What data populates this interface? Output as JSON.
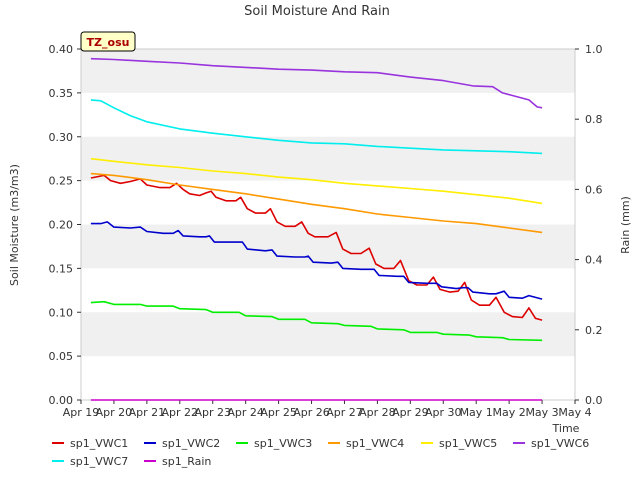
{
  "chart_data": {
    "type": "line",
    "title": "Soil Moisture And Rain",
    "badge": "TZ_osu",
    "xlabel": "Time",
    "ylabel": "Soil Moisture (m3/m3)",
    "y2label": "Rain (mm)",
    "ylim": [
      0,
      0.4
    ],
    "y2lim": [
      0,
      1.0
    ],
    "xlim": [
      0,
      15
    ],
    "grid": "horizontal bands",
    "legend_position": "bottom",
    "x_ticks": [
      {
        "x": 0,
        "label": "Apr 19"
      },
      {
        "x": 1,
        "label": "Apr 20"
      },
      {
        "x": 2,
        "label": "Apr 21"
      },
      {
        "x": 3,
        "label": "Apr 22"
      },
      {
        "x": 4,
        "label": "Apr 23"
      },
      {
        "x": 5,
        "label": "Apr 24"
      },
      {
        "x": 6,
        "label": "Apr 25"
      },
      {
        "x": 7,
        "label": "Apr 26"
      },
      {
        "x": 8,
        "label": "Apr 27"
      },
      {
        "x": 9,
        "label": "Apr 28"
      },
      {
        "x": 10,
        "label": "Apr 29"
      },
      {
        "x": 11,
        "label": "Apr 30"
      },
      {
        "x": 12,
        "label": "May 1"
      },
      {
        "x": 13,
        "label": "May 2"
      },
      {
        "x": 14,
        "label": "May 3"
      },
      {
        "x": 15,
        "label": "May 4"
      }
    ],
    "y_ticks": [
      {
        "v": 0.0,
        "label": "0.00"
      },
      {
        "v": 0.05,
        "label": "0.05"
      },
      {
        "v": 0.1,
        "label": "0.10"
      },
      {
        "v": 0.15,
        "label": "0.15"
      },
      {
        "v": 0.2,
        "label": "0.20"
      },
      {
        "v": 0.25,
        "label": "0.25"
      },
      {
        "v": 0.3,
        "label": "0.30"
      },
      {
        "v": 0.35,
        "label": "0.35"
      },
      {
        "v": 0.4,
        "label": "0.40"
      }
    ],
    "y2_ticks": [
      {
        "v": 0.0,
        "label": "0.0"
      },
      {
        "v": 0.2,
        "label": "0.2"
      },
      {
        "v": 0.4,
        "label": "0.4"
      },
      {
        "v": 0.6,
        "label": "0.6"
      },
      {
        "v": 0.8,
        "label": "0.8"
      },
      {
        "v": 1.0,
        "label": "1.0"
      }
    ],
    "series": [
      {
        "name": "sp1_VWC1",
        "color": "#dd0000",
        "axis": "left",
        "points": [
          [
            0.3,
            0.253
          ],
          [
            0.7,
            0.256
          ],
          [
            0.9,
            0.25
          ],
          [
            1.2,
            0.247
          ],
          [
            1.5,
            0.249
          ],
          [
            1.8,
            0.252
          ],
          [
            2.0,
            0.245
          ],
          [
            2.4,
            0.242
          ],
          [
            2.7,
            0.242
          ],
          [
            2.9,
            0.247
          ],
          [
            3.1,
            0.24
          ],
          [
            3.3,
            0.235
          ],
          [
            3.6,
            0.233
          ],
          [
            3.8,
            0.236
          ],
          [
            3.95,
            0.238
          ],
          [
            4.1,
            0.231
          ],
          [
            4.4,
            0.227
          ],
          [
            4.7,
            0.227
          ],
          [
            4.85,
            0.231
          ],
          [
            5.05,
            0.218
          ],
          [
            5.3,
            0.213
          ],
          [
            5.6,
            0.213
          ],
          [
            5.75,
            0.218
          ],
          [
            5.95,
            0.203
          ],
          [
            6.2,
            0.198
          ],
          [
            6.5,
            0.198
          ],
          [
            6.7,
            0.203
          ],
          [
            6.9,
            0.19
          ],
          [
            7.1,
            0.186
          ],
          [
            7.5,
            0.186
          ],
          [
            7.75,
            0.191
          ],
          [
            7.95,
            0.172
          ],
          [
            8.2,
            0.167
          ],
          [
            8.5,
            0.167
          ],
          [
            8.75,
            0.173
          ],
          [
            8.95,
            0.155
          ],
          [
            9.2,
            0.15
          ],
          [
            9.5,
            0.15
          ],
          [
            9.7,
            0.159
          ],
          [
            9.95,
            0.136
          ],
          [
            10.2,
            0.131
          ],
          [
            10.5,
            0.131
          ],
          [
            10.7,
            0.14
          ],
          [
            10.9,
            0.126
          ],
          [
            11.2,
            0.123
          ],
          [
            11.45,
            0.124
          ],
          [
            11.65,
            0.134
          ],
          [
            11.85,
            0.114
          ],
          [
            12.1,
            0.108
          ],
          [
            12.4,
            0.108
          ],
          [
            12.6,
            0.117
          ],
          [
            12.85,
            0.1
          ],
          [
            13.1,
            0.095
          ],
          [
            13.4,
            0.094
          ],
          [
            13.6,
            0.105
          ],
          [
            13.8,
            0.093
          ],
          [
            14.0,
            0.091
          ]
        ]
      },
      {
        "name": "sp1_VWC2",
        "color": "#0000cc",
        "axis": "left",
        "points": [
          [
            0.3,
            0.201
          ],
          [
            0.6,
            0.201
          ],
          [
            0.8,
            0.203
          ],
          [
            1.0,
            0.197
          ],
          [
            1.5,
            0.196
          ],
          [
            1.8,
            0.197
          ],
          [
            2.0,
            0.192
          ],
          [
            2.5,
            0.19
          ],
          [
            2.8,
            0.19
          ],
          [
            2.95,
            0.193
          ],
          [
            3.1,
            0.187
          ],
          [
            3.6,
            0.186
          ],
          [
            3.8,
            0.186
          ],
          [
            3.9,
            0.187
          ],
          [
            4.05,
            0.18
          ],
          [
            4.7,
            0.18
          ],
          [
            4.9,
            0.18
          ],
          [
            5.05,
            0.172
          ],
          [
            5.6,
            0.17
          ],
          [
            5.8,
            0.171
          ],
          [
            5.95,
            0.164
          ],
          [
            6.5,
            0.163
          ],
          [
            6.8,
            0.163
          ],
          [
            6.9,
            0.164
          ],
          [
            7.05,
            0.157
          ],
          [
            7.6,
            0.156
          ],
          [
            7.8,
            0.157
          ],
          [
            7.95,
            0.15
          ],
          [
            8.5,
            0.149
          ],
          [
            8.75,
            0.149
          ],
          [
            8.9,
            0.149
          ],
          [
            9.05,
            0.142
          ],
          [
            9.6,
            0.141
          ],
          [
            9.8,
            0.141
          ],
          [
            9.95,
            0.134
          ],
          [
            10.5,
            0.133
          ],
          [
            10.8,
            0.133
          ],
          [
            10.95,
            0.129
          ],
          [
            11.4,
            0.127
          ],
          [
            11.6,
            0.128
          ],
          [
            11.75,
            0.128
          ],
          [
            11.9,
            0.123
          ],
          [
            12.4,
            0.121
          ],
          [
            12.6,
            0.121
          ],
          [
            12.85,
            0.124
          ],
          [
            13.0,
            0.117
          ],
          [
            13.4,
            0.116
          ],
          [
            13.6,
            0.119
          ],
          [
            14.0,
            0.115
          ]
        ]
      },
      {
        "name": "sp1_VWC3",
        "color": "#00ee00",
        "axis": "left",
        "points": [
          [
            0.3,
            0.111
          ],
          [
            0.7,
            0.112
          ],
          [
            1.0,
            0.109
          ],
          [
            1.8,
            0.109
          ],
          [
            2.0,
            0.107
          ],
          [
            2.8,
            0.107
          ],
          [
            3.0,
            0.104
          ],
          [
            3.8,
            0.103
          ],
          [
            4.0,
            0.1
          ],
          [
            4.8,
            0.1
          ],
          [
            5.0,
            0.096
          ],
          [
            5.8,
            0.095
          ],
          [
            6.0,
            0.092
          ],
          [
            6.8,
            0.092
          ],
          [
            7.0,
            0.088
          ],
          [
            7.8,
            0.087
          ],
          [
            8.0,
            0.085
          ],
          [
            8.8,
            0.084
          ],
          [
            9.0,
            0.081
          ],
          [
            9.8,
            0.08
          ],
          [
            10.0,
            0.077
          ],
          [
            10.8,
            0.077
          ],
          [
            11.0,
            0.075
          ],
          [
            11.8,
            0.074
          ],
          [
            12.0,
            0.072
          ],
          [
            12.8,
            0.071
          ],
          [
            13.0,
            0.069
          ],
          [
            14.0,
            0.068
          ]
        ]
      },
      {
        "name": "sp1_VWC4",
        "color": "#ff9900",
        "axis": "left",
        "points": [
          [
            0.3,
            0.258
          ],
          [
            1.0,
            0.256
          ],
          [
            2.0,
            0.251
          ],
          [
            3.0,
            0.245
          ],
          [
            4.0,
            0.24
          ],
          [
            5.0,
            0.235
          ],
          [
            6.0,
            0.229
          ],
          [
            7.0,
            0.223
          ],
          [
            8.0,
            0.218
          ],
          [
            9.0,
            0.212
          ],
          [
            10.0,
            0.208
          ],
          [
            11.0,
            0.204
          ],
          [
            12.0,
            0.201
          ],
          [
            13.0,
            0.196
          ],
          [
            14.0,
            0.191
          ]
        ]
      },
      {
        "name": "sp1_VWC5",
        "color": "#ffee00",
        "axis": "left",
        "points": [
          [
            0.3,
            0.275
          ],
          [
            1.0,
            0.272
          ],
          [
            2.0,
            0.268
          ],
          [
            3.0,
            0.265
          ],
          [
            4.0,
            0.261
          ],
          [
            5.0,
            0.258
          ],
          [
            6.0,
            0.254
          ],
          [
            7.0,
            0.251
          ],
          [
            8.0,
            0.247
          ],
          [
            9.0,
            0.244
          ],
          [
            10.0,
            0.241
          ],
          [
            11.0,
            0.238
          ],
          [
            12.0,
            0.234
          ],
          [
            13.0,
            0.23
          ],
          [
            14.0,
            0.224
          ]
        ]
      },
      {
        "name": "sp1_VWC6",
        "color": "#9933dd",
        "axis": "left",
        "points": [
          [
            0.3,
            0.389
          ],
          [
            1.0,
            0.388
          ],
          [
            2.0,
            0.386
          ],
          [
            3.0,
            0.384
          ],
          [
            4.0,
            0.381
          ],
          [
            5.0,
            0.379
          ],
          [
            6.0,
            0.377
          ],
          [
            7.0,
            0.376
          ],
          [
            8.0,
            0.374
          ],
          [
            9.0,
            0.373
          ],
          [
            10.0,
            0.368
          ],
          [
            11.0,
            0.364
          ],
          [
            11.9,
            0.358
          ],
          [
            12.5,
            0.357
          ],
          [
            12.8,
            0.35
          ],
          [
            13.2,
            0.346
          ],
          [
            13.6,
            0.342
          ],
          [
            13.85,
            0.334
          ],
          [
            14.0,
            0.333
          ]
        ]
      },
      {
        "name": "sp1_VWC7",
        "color": "#00eeee",
        "axis": "left",
        "points": [
          [
            0.3,
            0.342
          ],
          [
            0.6,
            0.341
          ],
          [
            1.0,
            0.333
          ],
          [
            1.5,
            0.324
          ],
          [
            2.0,
            0.317
          ],
          [
            3.0,
            0.309
          ],
          [
            4.0,
            0.304
          ],
          [
            5.0,
            0.3
          ],
          [
            6.0,
            0.296
          ],
          [
            7.0,
            0.293
          ],
          [
            8.0,
            0.292
          ],
          [
            9.0,
            0.289
          ],
          [
            10.0,
            0.287
          ],
          [
            11.0,
            0.285
          ],
          [
            12.0,
            0.284
          ],
          [
            13.0,
            0.283
          ],
          [
            14.0,
            0.281
          ]
        ]
      },
      {
        "name": "sp1_Rain",
        "color": "#cc00cc",
        "axis": "right",
        "points": [
          [
            0.3,
            0.0
          ],
          [
            14.0,
            0.0
          ]
        ]
      }
    ]
  }
}
